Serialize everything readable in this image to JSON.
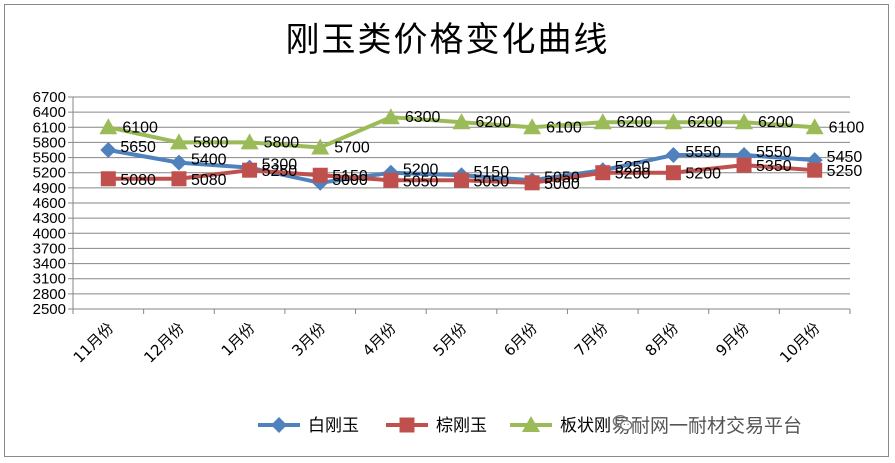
{
  "chart_data": {
    "type": "line",
    "title": "刚玉类价格变化曲线",
    "categories": [
      "11月份",
      "12月份",
      "1月份",
      "3月份",
      "4月份",
      "5月份",
      "6月份",
      "7月份",
      "8月份",
      "9月份",
      "10月份"
    ],
    "yticks": [
      2500,
      2800,
      3100,
      3400,
      3700,
      4000,
      4300,
      4600,
      4900,
      5200,
      5500,
      5800,
      6100,
      6400,
      6700
    ],
    "ylim": [
      2500,
      6700
    ],
    "grid": true,
    "legend_position": "bottom",
    "series": [
      {
        "name": "白刚玉",
        "color": "#4f81bd",
        "marker": "diamond",
        "values": [
          5650,
          5400,
          5300,
          5000,
          5200,
          5150,
          5050,
          5250,
          5550,
          5550,
          5450
        ]
      },
      {
        "name": "棕刚玉",
        "color": "#c0504d",
        "marker": "square",
        "values": [
          5080,
          5080,
          5250,
          5150,
          5050,
          5050,
          5000,
          5200,
          5200,
          5350,
          5250
        ]
      },
      {
        "name": "板状刚玉",
        "color": "#9bbb59",
        "marker": "triangle",
        "values": [
          6100,
          5800,
          5800,
          5700,
          6300,
          6200,
          6100,
          6200,
          6200,
          6200,
          6100
        ]
      }
    ],
    "legend_visible_names": [
      "白刚玉",
      "棕刚玉",
      "板状刚"
    ]
  },
  "watermark": {
    "text": "易耐网一耐材交易平台",
    "icon": "wechat-icon"
  }
}
